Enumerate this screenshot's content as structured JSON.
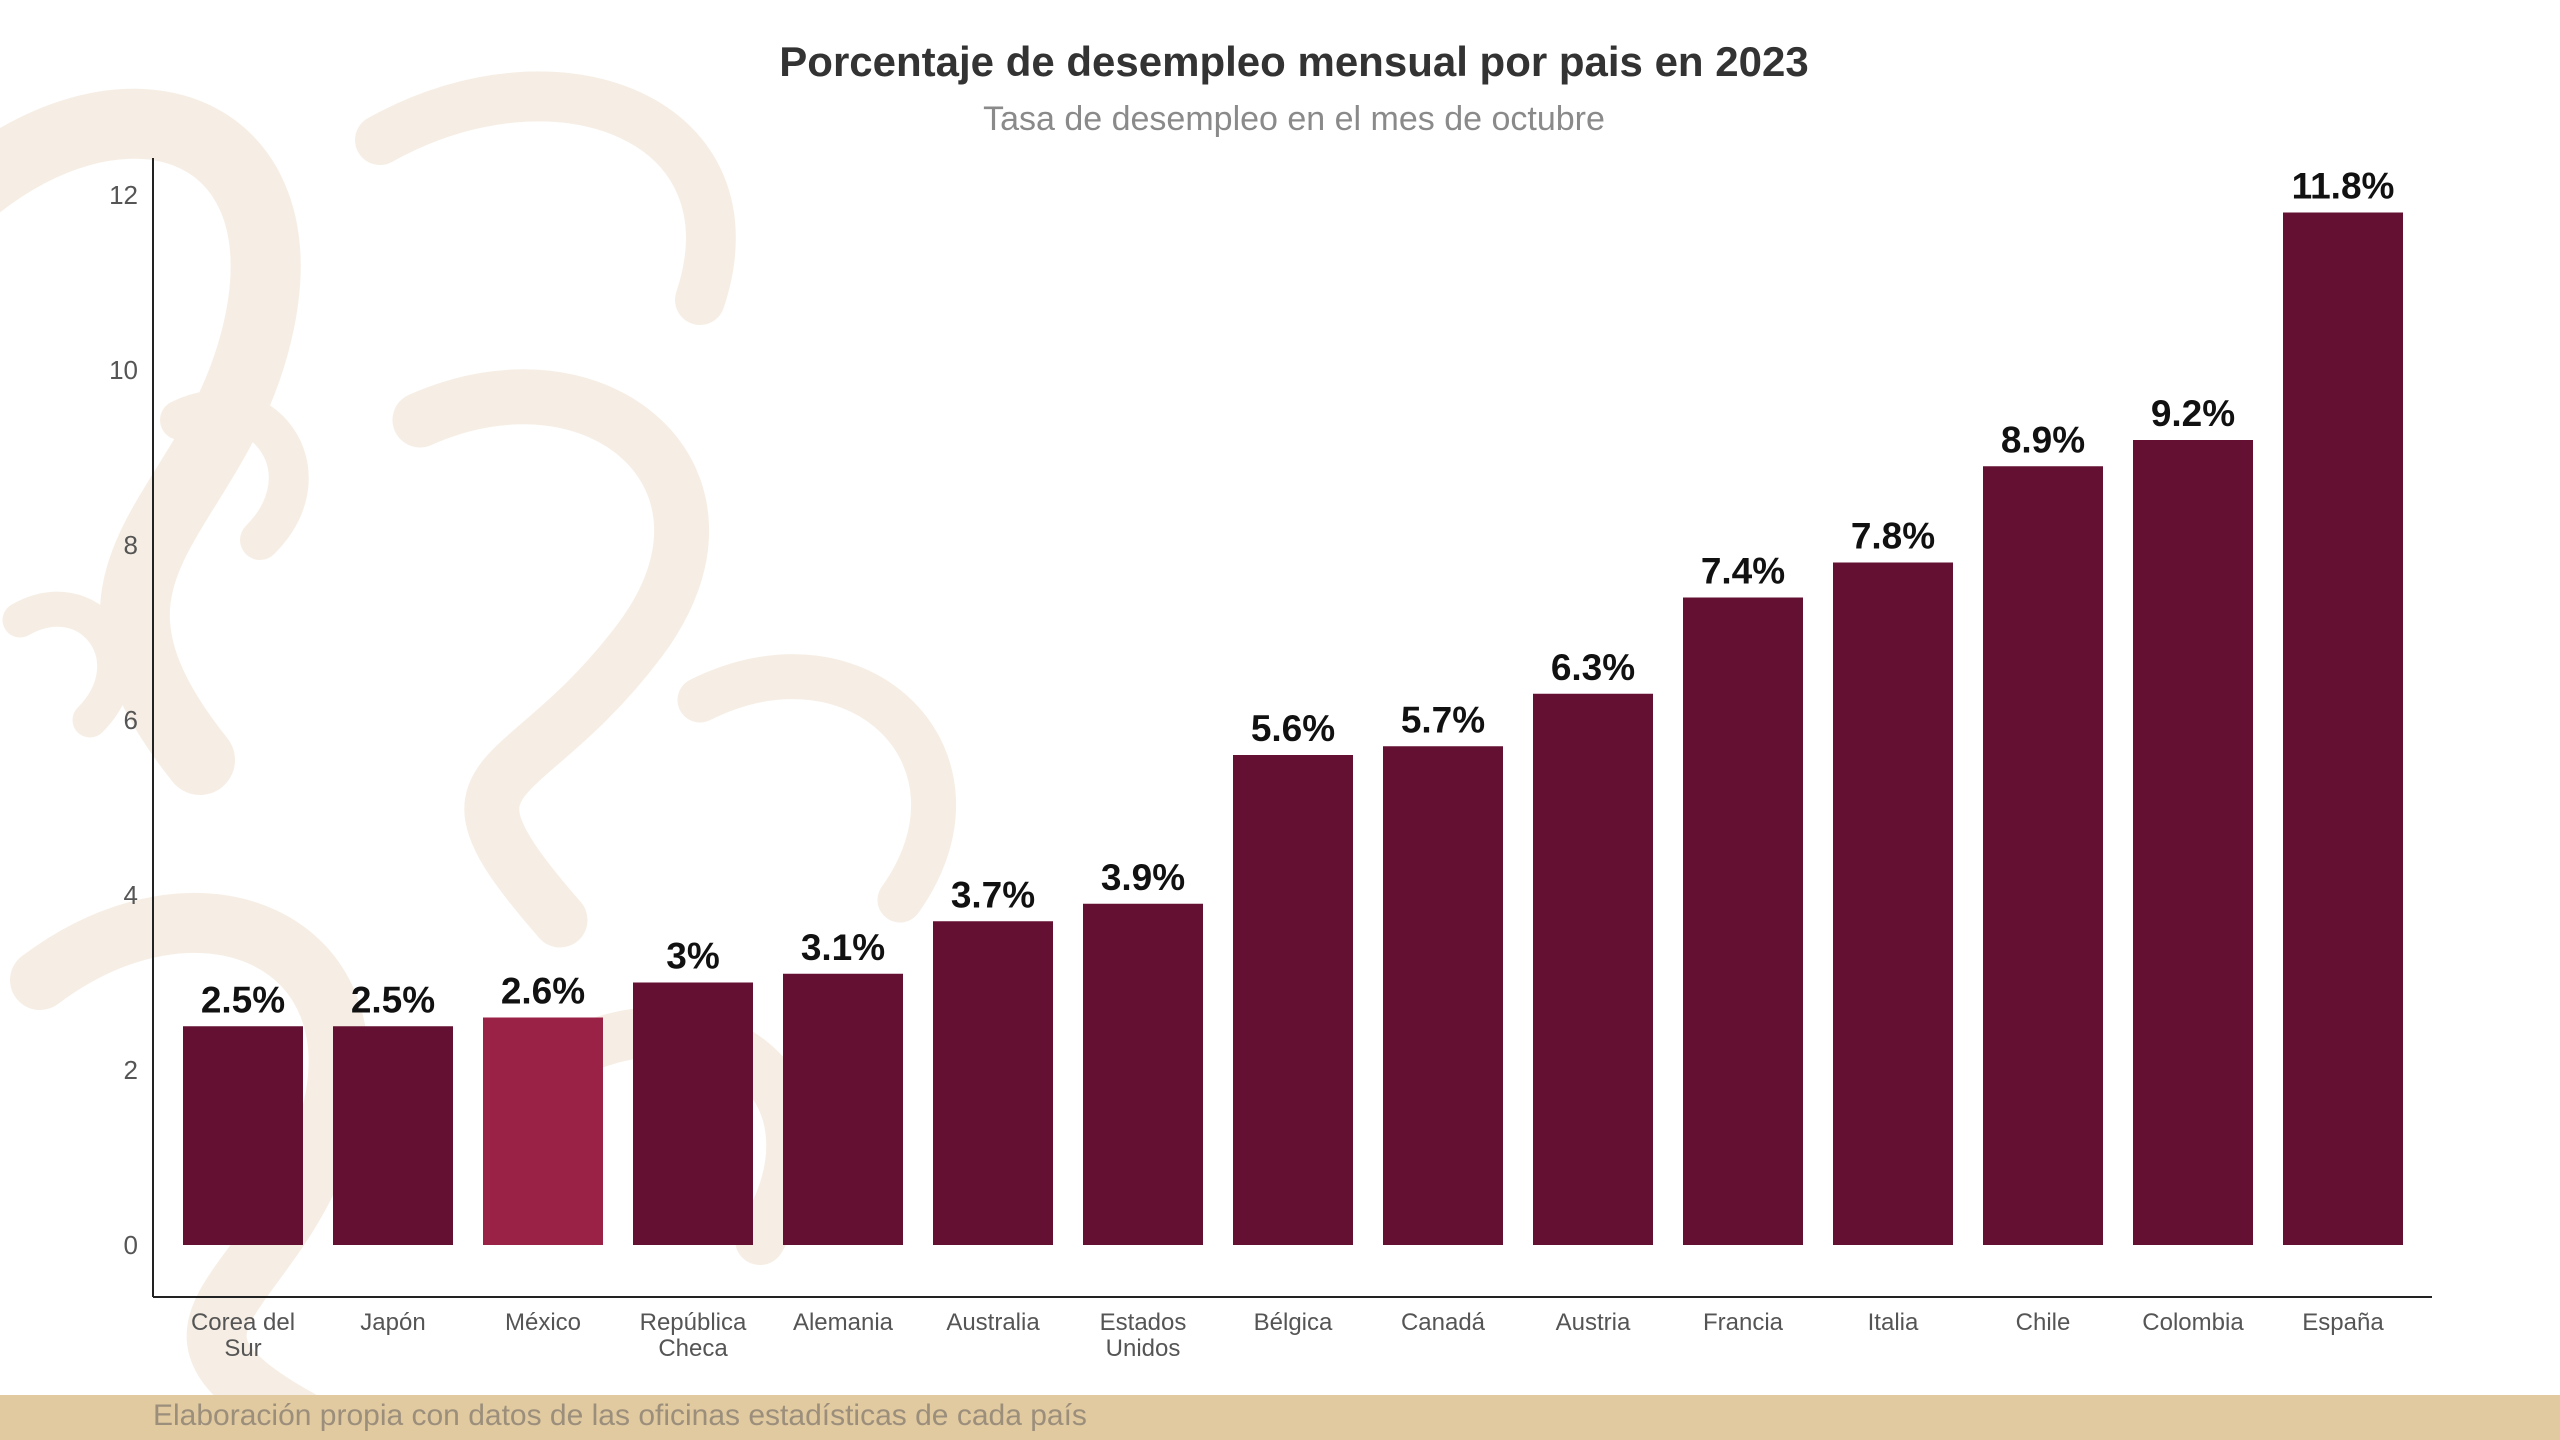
{
  "header": {
    "title": "Porcentaje de desempleo mensual por pais en 2023",
    "subtitle": "Tasa de desempleo en el mes de octubre"
  },
  "footer": {
    "source": "Elaboración propia con datos de las oficinas estadísticas de cada país"
  },
  "colors": {
    "bar": "#631032",
    "highlight": "#9b2247",
    "footer_band": "#e1c9a0",
    "background_pattern": "#f5ede3"
  },
  "chart_data": {
    "type": "bar",
    "title": "Porcentaje de desempleo mensual por pais en 2023",
    "subtitle": "Tasa de desempleo en el mes de octubre",
    "xlabel": "",
    "ylabel": "",
    "categories": [
      [
        "Corea del",
        "Sur"
      ],
      [
        "Japón"
      ],
      [
        "México"
      ],
      [
        "República",
        "Checa"
      ],
      [
        "Alemania"
      ],
      [
        "Australia"
      ],
      [
        "Estados",
        "Unidos"
      ],
      [
        "Bélgica"
      ],
      [
        "Canadá"
      ],
      [
        "Austria"
      ],
      [
        "Francia"
      ],
      [
        "Italia"
      ],
      [
        "Chile"
      ],
      [
        "Colombia"
      ],
      [
        "España"
      ]
    ],
    "values": [
      2.5,
      2.5,
      2.6,
      3.0,
      3.1,
      3.7,
      3.9,
      5.6,
      5.7,
      6.3,
      7.4,
      7.8,
      8.9,
      9.2,
      11.8
    ],
    "data_labels": [
      "2.5%",
      "2.5%",
      "2.6%",
      "3%",
      "3.1%",
      "3.7%",
      "3.9%",
      "5.6%",
      "5.7%",
      "6.3%",
      "7.4%",
      "7.8%",
      "8.9%",
      "9.2%",
      "11.8%"
    ],
    "highlight_index": 2,
    "ylim": [
      0,
      12.4
    ],
    "yticks": [
      0,
      2,
      4,
      6,
      8,
      10,
      12
    ],
    "grid": false,
    "legend": "none"
  }
}
